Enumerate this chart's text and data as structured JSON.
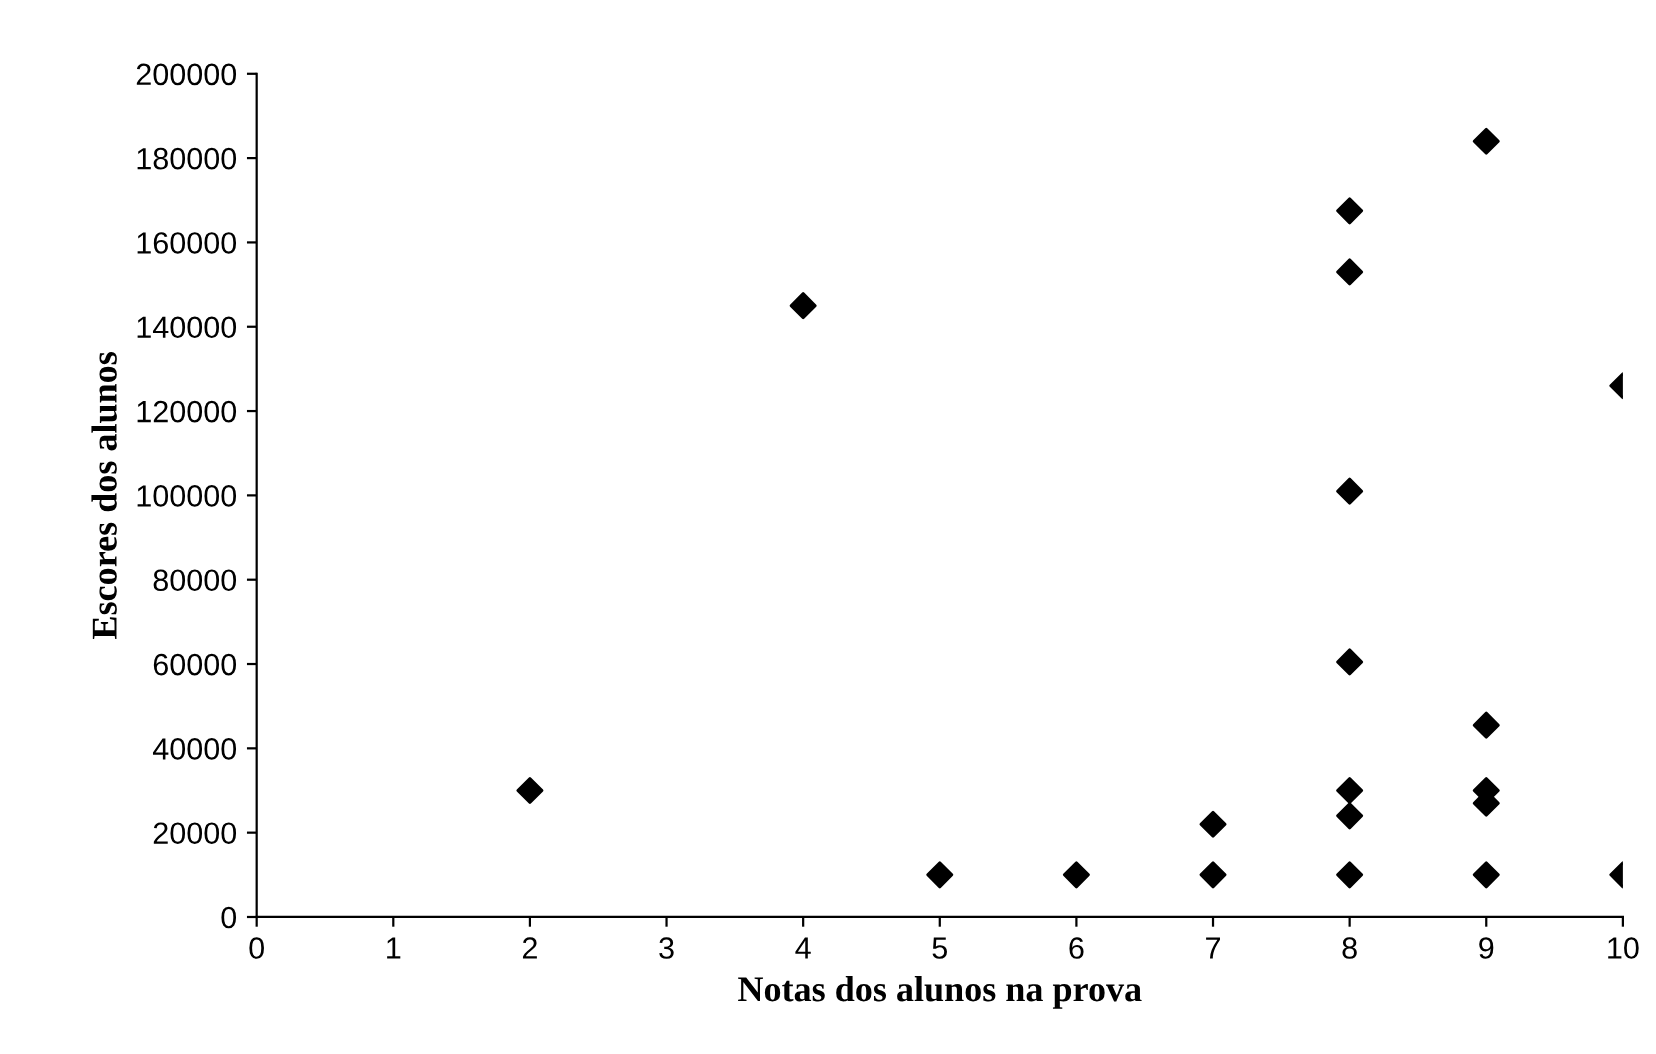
{
  "chart_data": {
    "type": "scatter",
    "xlabel": "Notas dos alunos na prova",
    "ylabel": "Escores dos alunos",
    "x": [
      2,
      4,
      5,
      6,
      7,
      7,
      8,
      8,
      8,
      8,
      8,
      8,
      8,
      9,
      9,
      9,
      9,
      9,
      10,
      10
    ],
    "series": [
      {
        "color": "#000000",
        "values": [
          30000,
          145000,
          10000,
          10000,
          10000,
          22000,
          10000,
          24000,
          30000,
          60500,
          101000,
          153000,
          167500,
          10000,
          27000,
          30000,
          45500,
          184000,
          10000,
          126000
        ]
      }
    ],
    "xlim": [
      0,
      10
    ],
    "xticks": [
      0,
      1,
      2,
      3,
      4,
      5,
      6,
      7,
      8,
      9,
      10
    ],
    "ylim": [
      0,
      200000
    ],
    "yticks": [
      0,
      20000,
      40000,
      60000,
      80000,
      100000,
      120000,
      140000,
      160000,
      180000,
      200000
    ],
    "marker": "diamond",
    "grid": false,
    "legend": false
  }
}
